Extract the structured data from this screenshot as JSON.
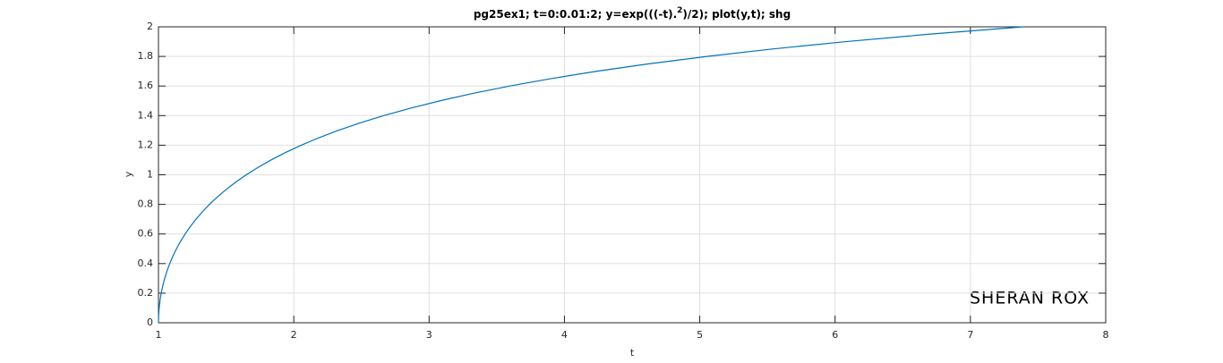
{
  "chart_data": {
    "type": "line",
    "title": [
      "pg25ex1;  t=0:0.01:2;  y=exp(((-t).",
      "2",
      ")/2);   plot(y,t); shg"
    ],
    "xlabel": "t",
    "ylabel": "y",
    "annotation": "SHERAN ROX",
    "x": [
      1,
      1.00125,
      1.00501,
      1.01131,
      1.0202,
      1.03174,
      1.04603,
      1.06316,
      1.08329,
      1.10655,
      1.13315,
      1.16329,
      1.19722,
      1.23522,
      1.27762,
      1.32478,
      1.37713,
      1.43512,
      1.4993,
      1.57027,
      1.64872,
      1.73539,
      1.83164,
      1.93726,
      2.05443,
      2.18415,
      2.32798,
      2.48741,
      2.66446,
      2.86119,
      3.08022,
      3.32424,
      3.59664,
      3.90116,
      4.24148,
      4.62426,
      5.05309,
      5.53589,
      6.07979,
      6.69408,
      7.38906
    ],
    "series": [
      {
        "color": "#0072bd",
        "values": [
          0,
          0.05,
          0.1,
          0.15,
          0.2,
          0.25,
          0.3,
          0.35,
          0.4,
          0.45,
          0.5,
          0.55,
          0.6,
          0.65,
          0.7,
          0.75,
          0.8,
          0.85,
          0.9,
          0.95,
          1,
          1.05,
          1.1,
          1.15,
          1.2,
          1.25,
          1.3,
          1.35,
          1.4,
          1.45,
          1.5,
          1.55,
          1.6,
          1.65,
          1.7,
          1.75,
          1.8,
          1.85,
          1.9,
          1.95,
          2
        ]
      }
    ],
    "xlim": [
      1,
      8
    ],
    "xticks": [
      1,
      2,
      3,
      4,
      5,
      6,
      7,
      8
    ],
    "ylim": [
      0,
      2
    ],
    "yticks": [
      0,
      0.2,
      0.4,
      0.6,
      0.8,
      1,
      1.2,
      1.4,
      1.6,
      1.8,
      2
    ],
    "grid": true
  }
}
